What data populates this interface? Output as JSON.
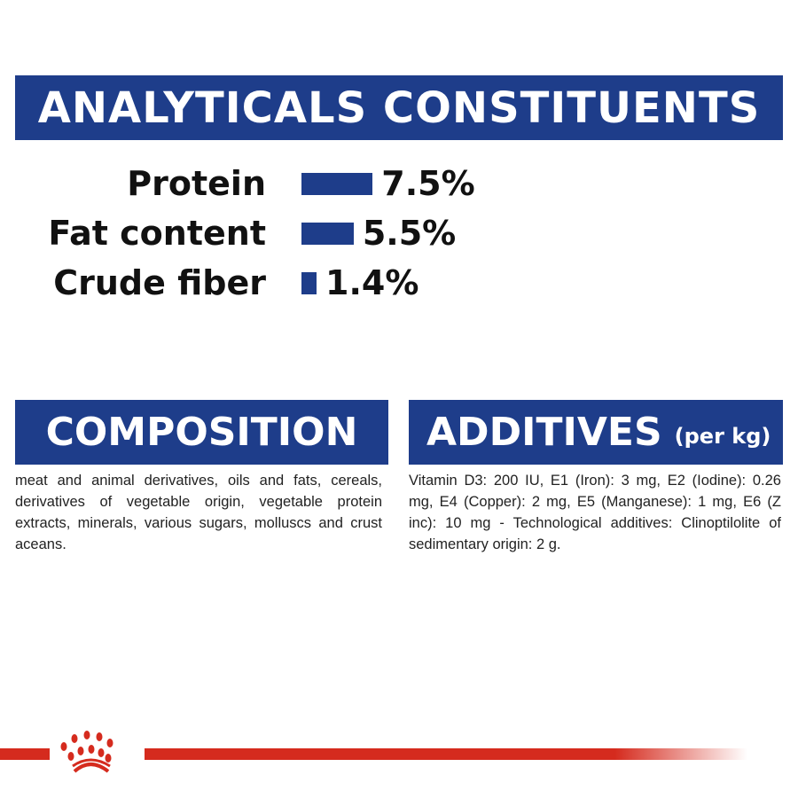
{
  "analytical": {
    "title": "ANALYTICALS CONSTITUENTS",
    "rows": [
      {
        "label": "Protein",
        "value": "7.5%",
        "percent": 7.5
      },
      {
        "label": "Fat content",
        "value": "5.5%",
        "percent": 5.5
      },
      {
        "label": "Crude fiber",
        "value": "1.4%",
        "percent": 1.4
      }
    ]
  },
  "composition": {
    "title": "COMPOSITION",
    "text": "meat and animal derivatives, oils and fats, cereals, derivatives of vegetable origin, vegetable protein extracts, minerals, various sugars, molluscs and crust aceans."
  },
  "additives": {
    "title": "ADDITIVES",
    "unit": "(per kg)",
    "text": "Vitamin D3: 200 IU, E1 (Iron): 3 mg, E2 (Iodine): 0.26 mg, E4 (Copper): 2 mg, E5 (Manganese): 1 mg, E6 (Z inc): 10 mg - Technological additives: Clinoptilolite of sedimentary origin: 2 g."
  },
  "colors": {
    "brand_blue": "#1e3d8a",
    "brand_red": "#d52b1e"
  },
  "footer": {
    "logo": "crown-logo"
  }
}
